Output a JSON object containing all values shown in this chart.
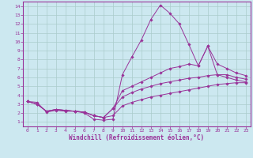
{
  "xlabel": "Windchill (Refroidissement éolien,°C)",
  "bg_color": "#cce8f0",
  "line_color": "#993399",
  "grid_color": "#aacccc",
  "xlim": [
    -0.5,
    23.5
  ],
  "ylim": [
    0.5,
    14.5
  ],
  "xticks": [
    0,
    1,
    2,
    3,
    4,
    5,
    6,
    7,
    8,
    9,
    10,
    11,
    12,
    13,
    14,
    15,
    16,
    17,
    18,
    19,
    20,
    21,
    22,
    23
  ],
  "yticks": [
    1,
    2,
    3,
    4,
    5,
    6,
    7,
    8,
    9,
    10,
    11,
    12,
    13,
    14
  ],
  "series": [
    {
      "x": [
        0,
        1,
        2,
        3,
        4,
        5,
        6,
        7,
        8,
        9,
        10,
        11,
        12,
        13,
        14,
        15,
        16,
        17,
        18,
        19,
        20,
        21,
        22,
        23
      ],
      "y": [
        3.3,
        3.2,
        2.1,
        2.3,
        2.2,
        2.2,
        2.0,
        1.3,
        1.2,
        1.3,
        6.3,
        8.3,
        10.2,
        12.5,
        14.1,
        13.2,
        12.0,
        9.7,
        7.3,
        9.5,
        6.3,
        6.0,
        5.7,
        5.5
      ]
    },
    {
      "x": [
        0,
        1,
        2,
        3,
        4,
        5,
        6,
        7,
        8,
        9,
        10,
        11,
        12,
        13,
        14,
        15,
        16,
        17,
        18,
        19,
        20,
        21,
        22,
        23
      ],
      "y": [
        3.3,
        3.0,
        2.2,
        2.4,
        2.3,
        2.2,
        2.1,
        1.7,
        1.5,
        2.5,
        4.5,
        5.0,
        5.5,
        6.0,
        6.5,
        7.0,
        7.2,
        7.5,
        7.3,
        9.5,
        7.5,
        7.0,
        6.5,
        6.2
      ]
    },
    {
      "x": [
        0,
        1,
        2,
        3,
        4,
        5,
        6,
        7,
        8,
        9,
        10,
        11,
        12,
        13,
        14,
        15,
        16,
        17,
        18,
        19,
        20,
        21,
        22,
        23
      ],
      "y": [
        3.3,
        3.0,
        2.2,
        2.4,
        2.3,
        2.2,
        2.1,
        1.7,
        1.5,
        2.5,
        3.8,
        4.3,
        4.7,
        5.0,
        5.3,
        5.5,
        5.7,
        5.9,
        6.0,
        6.2,
        6.3,
        6.3,
        6.0,
        5.8
      ]
    },
    {
      "x": [
        0,
        1,
        2,
        3,
        4,
        5,
        6,
        7,
        8,
        9,
        10,
        11,
        12,
        13,
        14,
        15,
        16,
        17,
        18,
        19,
        20,
        21,
        22,
        23
      ],
      "y": [
        3.3,
        3.0,
        2.2,
        2.4,
        2.3,
        2.2,
        2.1,
        1.7,
        1.5,
        1.7,
        2.8,
        3.2,
        3.5,
        3.8,
        4.0,
        4.2,
        4.4,
        4.6,
        4.8,
        5.0,
        5.2,
        5.3,
        5.4,
        5.4
      ]
    }
  ]
}
